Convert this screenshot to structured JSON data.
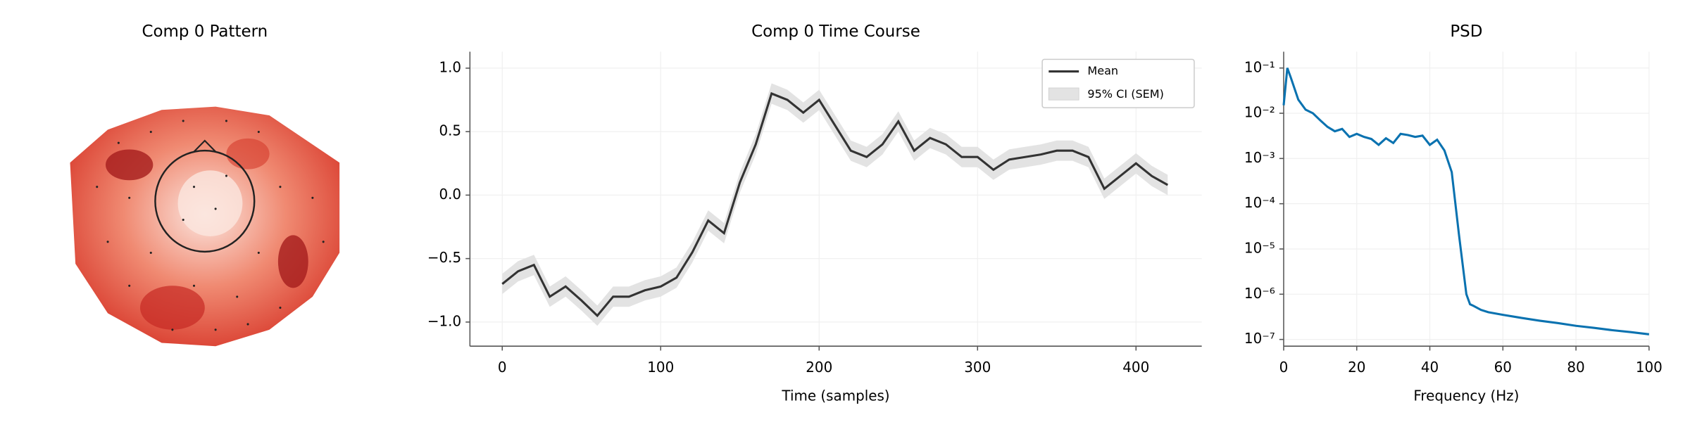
{
  "chart_data": [
    {
      "type": "topomap",
      "title": "Comp 0 Pattern"
    },
    {
      "type": "line",
      "title": "Comp 0 Time Course",
      "xlabel": "Time (samples)",
      "x": [
        0,
        10,
        20,
        30,
        40,
        50,
        60,
        70,
        80,
        90,
        100,
        110,
        120,
        130,
        140,
        150,
        160,
        170,
        180,
        190,
        200,
        210,
        220,
        230,
        240,
        250,
        260,
        270,
        280,
        290,
        300,
        310,
        320,
        330,
        340,
        350,
        360,
        370,
        380,
        390,
        400,
        410,
        420
      ],
      "series": [
        {
          "name": "Mean",
          "color": "#333333",
          "values": [
            -0.7,
            -0.6,
            -0.55,
            -0.8,
            -0.72,
            -0.83,
            -0.95,
            -0.8,
            -0.8,
            -0.75,
            -0.72,
            -0.65,
            -0.45,
            -0.2,
            -0.3,
            0.1,
            0.4,
            0.8,
            0.75,
            0.65,
            0.75,
            0.55,
            0.35,
            0.3,
            0.4,
            0.58,
            0.35,
            0.45,
            0.4,
            0.3,
            0.3,
            0.2,
            0.28,
            0.3,
            0.32,
            0.35,
            0.35,
            0.3,
            0.05,
            0.15,
            0.25,
            0.15,
            0.08
          ]
        }
      ],
      "band": {
        "name": "95% CI (SEM)",
        "color": "#e3e3e3",
        "lower": [
          -0.78,
          -0.68,
          -0.63,
          -0.88,
          -0.8,
          -0.91,
          -1.03,
          -0.88,
          -0.88,
          -0.83,
          -0.8,
          -0.73,
          -0.53,
          -0.28,
          -0.38,
          0.02,
          0.32,
          0.72,
          0.67,
          0.57,
          0.67,
          0.47,
          0.27,
          0.22,
          0.32,
          0.5,
          0.27,
          0.37,
          0.32,
          0.22,
          0.22,
          0.12,
          0.2,
          0.22,
          0.24,
          0.27,
          0.27,
          0.22,
          -0.03,
          0.07,
          0.17,
          0.07,
          0.0
        ],
        "upper": [
          -0.62,
          -0.52,
          -0.47,
          -0.72,
          -0.64,
          -0.75,
          -0.87,
          -0.72,
          -0.72,
          -0.67,
          -0.64,
          -0.57,
          -0.37,
          -0.12,
          -0.22,
          0.18,
          0.48,
          0.88,
          0.83,
          0.73,
          0.83,
          0.63,
          0.43,
          0.38,
          0.48,
          0.66,
          0.43,
          0.53,
          0.48,
          0.38,
          0.38,
          0.28,
          0.36,
          0.38,
          0.4,
          0.43,
          0.43,
          0.38,
          0.13,
          0.23,
          0.33,
          0.23,
          0.16
        ]
      },
      "xlim": [
        -20.4,
        441.5
      ],
      "xticks": [
        0,
        100,
        200,
        300,
        400
      ],
      "ylim": [
        -1.19,
        1.13
      ],
      "yticks": [
        {
          "value": -1,
          "label": "−1.0"
        },
        {
          "value": -0.5,
          "label": "−0.5"
        },
        {
          "value": 0,
          "label": "0.0"
        },
        {
          "value": 0.5,
          "label": "0.5"
        },
        {
          "value": 1,
          "label": "1.0"
        }
      ],
      "grid": true,
      "legend": "upper right"
    },
    {
      "type": "line",
      "title": "PSD",
      "xlabel": "Frequency (Hz)",
      "x": [
        0,
        1,
        2,
        4,
        6,
        8,
        10,
        12,
        14,
        16,
        18,
        20,
        22,
        24,
        26,
        28,
        30,
        32,
        34,
        36,
        38,
        40,
        42,
        44,
        46,
        48,
        50,
        51,
        52,
        54,
        56,
        60,
        65,
        70,
        75,
        80,
        85,
        90,
        95,
        100
      ],
      "series": [
        {
          "color": "#0a72b0",
          "values": [
            0.015,
            0.1,
            0.06,
            0.02,
            0.012,
            0.01,
            0.007,
            0.005,
            0.004,
            0.0045,
            0.003,
            0.0035,
            0.003,
            0.0027,
            0.002,
            0.0028,
            0.0022,
            0.0035,
            0.0033,
            0.003,
            0.0032,
            0.002,
            0.0026,
            0.0015,
            0.0005,
            2e-05,
            1e-06,
            6e-07,
            5.5e-07,
            4.5e-07,
            4e-07,
            3.5e-07,
            3e-07,
            2.6e-07,
            2.3e-07,
            2e-07,
            1.8e-07,
            1.6e-07,
            1.45e-07,
            1.3e-07
          ]
        }
      ],
      "xlim": [
        0,
        100
      ],
      "xticks": [
        0,
        20,
        40,
        60,
        80,
        100
      ],
      "ylim": [
        7.1e-08,
        0.23
      ],
      "log_y": true,
      "yticks": [
        {
          "value": 1e-07,
          "label": "10⁻⁷"
        },
        {
          "value": 1e-06,
          "label": "10⁻⁶"
        },
        {
          "value": 1e-05,
          "label": "10⁻⁵"
        },
        {
          "value": 0.0001,
          "label": "10⁻⁴"
        },
        {
          "value": 0.001,
          "label": "10⁻³"
        },
        {
          "value": 0.01,
          "label": "10⁻²"
        },
        {
          "value": 0.1,
          "label": "10⁻¹"
        }
      ],
      "grid": true
    }
  ]
}
